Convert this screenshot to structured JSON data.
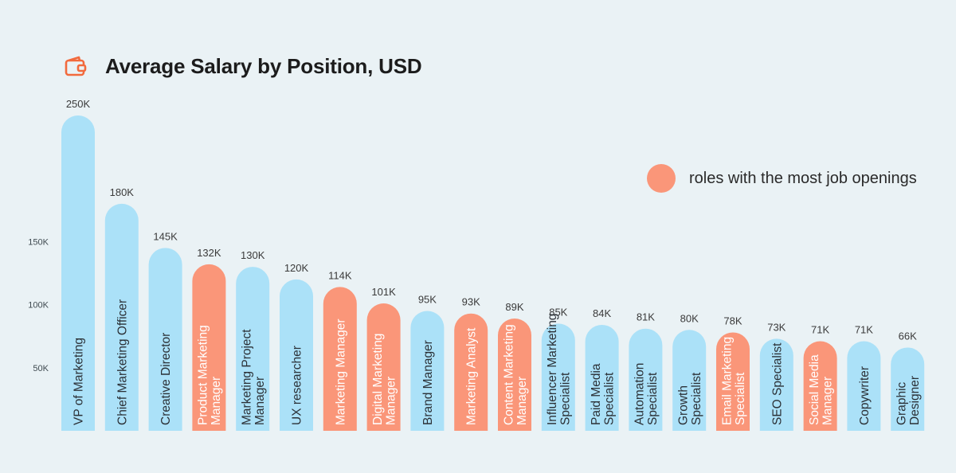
{
  "chart_data": {
    "type": "bar",
    "title": "Average Salary by Position, USD",
    "categories": [
      [
        "VP of Marketing"
      ],
      [
        "Chief Marketing Officer"
      ],
      [
        "Creative Director"
      ],
      [
        "Product Marketing",
        "Manager"
      ],
      [
        "Marketing Project",
        "Manager"
      ],
      [
        "UX researcher"
      ],
      [
        "Marketing Manager"
      ],
      [
        "Digital Marketing",
        "Manager"
      ],
      [
        "Brand Manager"
      ],
      [
        "Marketing Analyst"
      ],
      [
        "Content Marketing",
        "Manager"
      ],
      [
        "Influencer Marketing",
        "Specialist"
      ],
      [
        "Paid Media",
        "Specialist"
      ],
      [
        "Automation",
        "Specialist"
      ],
      [
        "Growth",
        "Specialist"
      ],
      [
        "Email Marketing",
        "Specialist"
      ],
      [
        "SEO Specialist"
      ],
      [
        "Social Media",
        "Manager"
      ],
      [
        "Copywriter"
      ],
      [
        "Graphic",
        "Designer"
      ]
    ],
    "values": [
      250,
      180,
      145,
      132,
      130,
      120,
      114,
      101,
      95,
      93,
      89,
      85,
      84,
      81,
      80,
      78,
      73,
      71,
      71,
      66
    ],
    "value_labels": [
      "250K",
      "180K",
      "145K",
      "132K",
      "130K",
      "120K",
      "114K",
      "101K",
      "95K",
      "93K",
      "89K",
      "85K",
      "84K",
      "81K",
      "80K",
      "78K",
      "73K",
      "71K",
      "71K",
      "66K"
    ],
    "highlighted": [
      false,
      false,
      false,
      true,
      false,
      false,
      true,
      true,
      false,
      true,
      true,
      false,
      false,
      false,
      false,
      true,
      false,
      true,
      false,
      false
    ],
    "y_ticks": [
      {
        "value": 50,
        "label": "50K"
      },
      {
        "value": 100,
        "label": "100K"
      },
      {
        "value": 150,
        "label": "150K"
      }
    ],
    "ylim": [
      0,
      250
    ],
    "grid": false,
    "legend": {
      "position": "right",
      "label": "roles with the most job openings"
    }
  },
  "colors": {
    "background": "#eaf2f5",
    "bar_default": "#abe1f8",
    "bar_highlight": "#fa9679",
    "label_on_default": "#2b3036",
    "label_on_highlight": "#ffffff",
    "value_text": "#3a3a3a",
    "tick_text": "#3f4a50",
    "title_icon": "#f26a3d"
  },
  "icons": {
    "title": "wallet-icon",
    "legend": "legend-dot"
  }
}
